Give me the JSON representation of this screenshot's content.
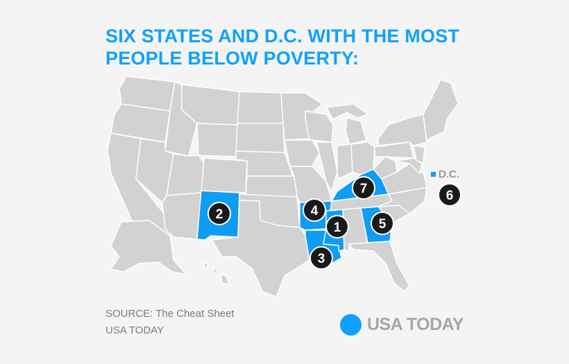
{
  "title": {
    "line1": "SIX STATES AND D.C. WITH THE MOST",
    "line2": "PEOPLE BELOW POVERTY:"
  },
  "colors": {
    "highlight": "#0f9df4",
    "base_state": "#d2d2d2",
    "marker": "#1a1a1a",
    "title": "#0ea1ff",
    "background": "#f4f4f4"
  },
  "ranking": [
    {
      "rank": "1",
      "state": "Mississippi"
    },
    {
      "rank": "2",
      "state": "New Mexico"
    },
    {
      "rank": "3",
      "state": "Louisiana"
    },
    {
      "rank": "4",
      "state": "Arkansas"
    },
    {
      "rank": "5",
      "state": "Georgia"
    },
    {
      "rank": "6",
      "state": "D.C."
    },
    {
      "rank": "7",
      "state": "Kentucky"
    }
  ],
  "dc_label": "D.C.",
  "source": "SOURCE:  The Cheat Sheet",
  "credit": "USA TODAY",
  "brand": "USA TODAY"
}
